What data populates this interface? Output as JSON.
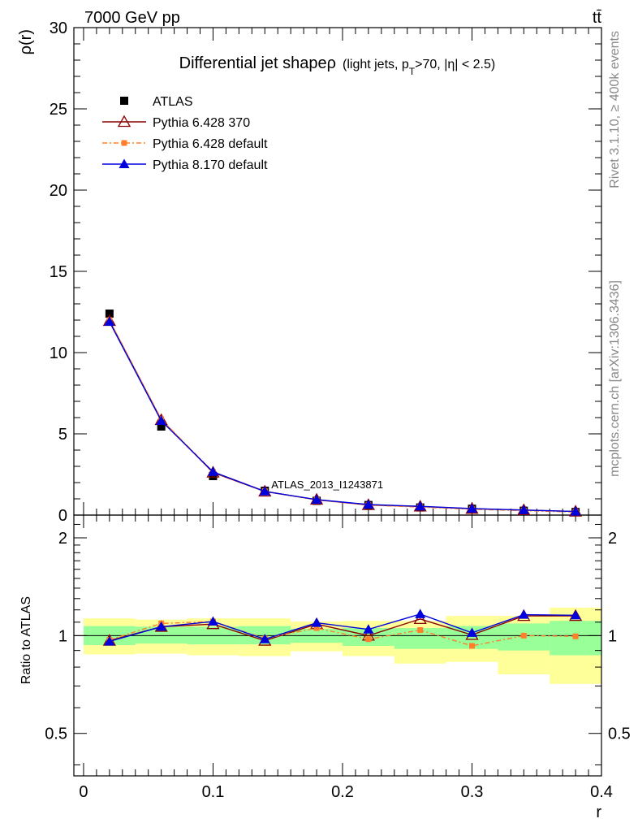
{
  "header": {
    "energy_label": "7000 GeV pp",
    "process_label": "tt̄"
  },
  "side_labels": {
    "rivet": "Rivet 3.1.10, ≥ 400k events",
    "source": "mcplots.cern.ch [arXiv:1306.3436]"
  },
  "colors": {
    "atlas": "#000000",
    "pythia6_370": "#8b0000",
    "pythia6_default": "#ff7f2a",
    "pythia8_default": "#0000dd",
    "band_inner": "#99ff99",
    "band_outer": "#ffff99",
    "watermark": "#999999"
  },
  "chart_data": [
    {
      "type": "line",
      "panel": "main",
      "title": "Differential jet shapeρ",
      "title_detail_pre": "(light jets, p",
      "title_detail_sub": "T",
      "title_detail_post": ">70, |η| < 2.5)",
      "ylabel": "ρ(r)",
      "xlim": [
        -0.0075,
        0.4
      ],
      "ylim": [
        0,
        30
      ],
      "yticks": [
        0,
        5,
        10,
        15,
        20,
        25,
        30
      ],
      "yticklabels": [
        "0",
        "5",
        "10",
        "15",
        "20",
        "25",
        "30"
      ],
      "watermark": "ATLAS_2013_I1243871",
      "legend_position": "top-left",
      "x": [
        0.02,
        0.06,
        0.1,
        0.14,
        0.18,
        0.22,
        0.26,
        0.3,
        0.34,
        0.38
      ],
      "series": [
        {
          "name": "ATLAS",
          "marker": "square",
          "values": [
            12.4,
            5.45,
            2.4,
            1.5,
            0.88,
            0.62,
            0.47,
            0.39,
            0.27,
            0.19
          ]
        },
        {
          "name": "Pythia 6.428 370",
          "marker": "triangle-open",
          "values": [
            11.95,
            5.85,
            2.62,
            1.45,
            0.95,
            0.62,
            0.53,
            0.39,
            0.31,
            0.22
          ]
        },
        {
          "name": "Pythia 6.428 default",
          "marker": "small-square",
          "values": [
            12.0,
            5.9,
            2.65,
            1.47,
            0.93,
            0.61,
            0.49,
            0.36,
            0.27,
            0.19
          ]
        },
        {
          "name": "Pythia 8.170 default",
          "marker": "triangle",
          "values": [
            11.9,
            5.8,
            2.66,
            1.46,
            0.95,
            0.65,
            0.54,
            0.4,
            0.31,
            0.22
          ]
        }
      ]
    },
    {
      "type": "line",
      "panel": "ratio",
      "ylabel": "Ratio to ATLAS",
      "xlabel": "r",
      "xlim": [
        -0.0075,
        0.4
      ],
      "ylim": [
        0.37,
        2.35
      ],
      "xticks": [
        0,
        0.1,
        0.2,
        0.3,
        0.4
      ],
      "xticklabels": [
        "0",
        "0.1",
        "0.2",
        "0.3",
        "0.4"
      ],
      "yticks": [
        0.5,
        1,
        2
      ],
      "yticklabels": [
        "0.5",
        "1",
        "2"
      ],
      "x": [
        0.02,
        0.06,
        0.1,
        0.14,
        0.18,
        0.22,
        0.26,
        0.3,
        0.34,
        0.38
      ],
      "bin_edges": [
        0,
        0.04,
        0.08,
        0.12,
        0.16,
        0.2,
        0.24,
        0.28,
        0.32,
        0.36,
        0.4
      ],
      "inner_band": [
        [
          0.935,
          1.07
        ],
        [
          0.945,
          1.065
        ],
        [
          0.94,
          1.065
        ],
        [
          0.94,
          1.07
        ],
        [
          0.95,
          1.05
        ],
        [
          0.93,
          1.055
        ],
        [
          0.91,
          1.055
        ],
        [
          0.91,
          1.07
        ],
        [
          0.9,
          1.09
        ],
        [
          0.87,
          1.11
        ]
      ],
      "outer_band": [
        [
          0.875,
          1.13
        ],
        [
          0.88,
          1.12
        ],
        [
          0.87,
          1.13
        ],
        [
          0.865,
          1.13
        ],
        [
          0.895,
          1.105
        ],
        [
          0.865,
          1.11
        ],
        [
          0.82,
          1.11
        ],
        [
          0.83,
          1.15
        ],
        [
          0.76,
          1.15
        ],
        [
          0.71,
          1.22
        ]
      ],
      "series": [
        {
          "name": "Pythia 6.428 370",
          "marker": "triangle-open",
          "values": [
            0.965,
            1.065,
            1.085,
            0.965,
            1.085,
            1.0,
            1.125,
            1.005,
            1.15,
            1.15
          ]
        },
        {
          "name": "Pythia 6.428 default",
          "marker": "small-square",
          "values": [
            0.97,
            1.09,
            1.105,
            0.98,
            1.055,
            0.975,
            1.04,
            0.93,
            1.0,
            0.995
          ]
        },
        {
          "name": "Pythia 8.170 default",
          "marker": "triangle",
          "values": [
            0.96,
            1.065,
            1.105,
            0.975,
            1.095,
            1.045,
            1.165,
            1.02,
            1.16,
            1.155
          ]
        }
      ]
    }
  ]
}
